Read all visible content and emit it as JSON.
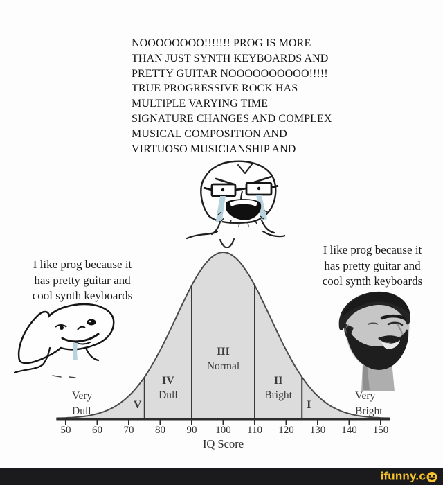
{
  "page": {
    "background": "#fdfdfd"
  },
  "top_rant": {
    "text": "NOOOOOOOO!!!!!!! PROG IS MORE\nTHAN JUST SYNTH KEYBOARDS AND\nPRETTY GUITAR NOOOOOOOOOO!!!!!\nTRUE PROGRESSIVE ROCK HAS\nMULTIPLE VARYING TIME\nSIGNATURE CHANGES AND COMPLEX\nMUSICAL COMPOSITION AND\nVIRTUOSO MUSICIANSHIP AND"
  },
  "left_caption": {
    "text": "I like prog because it\nhas pretty guitar and\ncool synth keyboards"
  },
  "right_caption": {
    "text": "I like prog because it\nhas pretty guitar and\ncool synth keyboards"
  },
  "characters": {
    "center": "crying soyjak with glasses",
    "left": "brainlet wojak",
    "right": "gigachad"
  },
  "chart_data": {
    "type": "area",
    "title": "",
    "xlabel": "IQ Score",
    "ylabel": "",
    "x_ticks": [
      50,
      60,
      70,
      80,
      90,
      100,
      110,
      120,
      130,
      140,
      150
    ],
    "xlim": [
      50,
      150
    ],
    "grid": false,
    "distribution": {
      "shape": "normal",
      "mean": 100,
      "sd": 15
    },
    "dividers": [
      75,
      90,
      110,
      125
    ],
    "regions": [
      {
        "numeral": "V",
        "label": "Very Dull",
        "range": [
          50,
          75
        ]
      },
      {
        "numeral": "IV",
        "label": "Dull",
        "range": [
          75,
          90
        ]
      },
      {
        "numeral": "III",
        "label": "Normal",
        "range": [
          90,
          110
        ]
      },
      {
        "numeral": "II",
        "label": "Bright",
        "range": [
          110,
          125
        ]
      },
      {
        "numeral": "I",
        "label": "Very Bright",
        "range": [
          125,
          150
        ]
      }
    ],
    "fill_color": "#dcdcdc",
    "line_color": "#4b4b4b",
    "axis_color": "#2d2d2d",
    "text_color": "#3a3a3a"
  },
  "watermark": {
    "text": "ifunny.co",
    "prefix": "ifunny.c",
    "bar_color": "#1b1b1d",
    "accent_color": "#f8c42a"
  }
}
